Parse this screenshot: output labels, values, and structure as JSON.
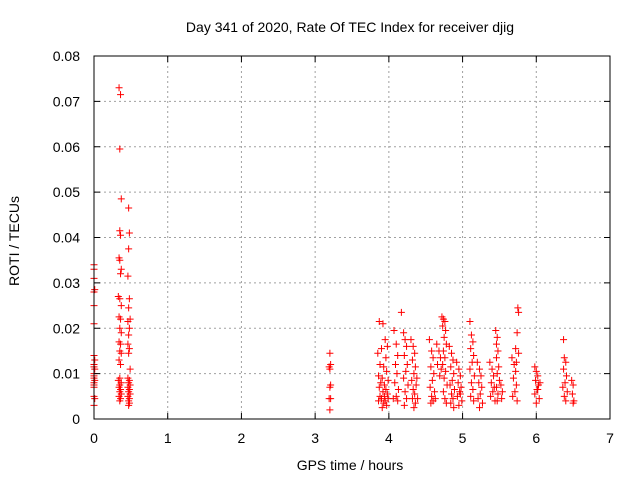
{
  "chart_data": {
    "type": "scatter",
    "title": "Day 341 of 2020, Rate Of TEC Index for receiver djig",
    "xlabel": "GPS time / hours",
    "ylabel": "ROTI / TECUs",
    "xlim": [
      0,
      7
    ],
    "ylim": [
      0,
      0.08
    ],
    "xticks": [
      "0",
      "1",
      "2",
      "3",
      "4",
      "5",
      "6",
      "7"
    ],
    "yticks": [
      "0",
      "0.01",
      "0.02",
      "0.03",
      "0.04",
      "0.05",
      "0.06",
      "0.07",
      "0.08"
    ],
    "grid": true,
    "marker": "+",
    "color": "#ff0000",
    "series": [
      {
        "name": "ROTI",
        "points": [
          [
            0.0,
            0.034
          ],
          [
            0.0,
            0.033
          ],
          [
            0.0,
            0.031
          ],
          [
            0.0,
            0.028
          ],
          [
            0.01,
            0.0285
          ],
          [
            0.0,
            0.025
          ],
          [
            0.0,
            0.021
          ],
          [
            0.0,
            0.014
          ],
          [
            0.01,
            0.013
          ],
          [
            0.0,
            0.012
          ],
          [
            0.0,
            0.0115
          ],
          [
            0.01,
            0.011
          ],
          [
            0.0,
            0.01
          ],
          [
            0.0,
            0.0095
          ],
          [
            0.0,
            0.009
          ],
          [
            0.01,
            0.0085
          ],
          [
            0.0,
            0.008
          ],
          [
            0.0,
            0.0075
          ],
          [
            0.0,
            0.007
          ],
          [
            0.0,
            0.005
          ],
          [
            0.01,
            0.0045
          ],
          [
            0.0,
            0.003
          ],
          [
            0.34,
            0.073
          ],
          [
            0.36,
            0.0715
          ],
          [
            0.35,
            0.0595
          ],
          [
            0.37,
            0.0485
          ],
          [
            0.35,
            0.0415
          ],
          [
            0.36,
            0.0405
          ],
          [
            0.34,
            0.0355
          ],
          [
            0.35,
            0.035
          ],
          [
            0.37,
            0.033
          ],
          [
            0.36,
            0.032
          ],
          [
            0.33,
            0.027
          ],
          [
            0.35,
            0.0265
          ],
          [
            0.37,
            0.025
          ],
          [
            0.34,
            0.0225
          ],
          [
            0.36,
            0.022
          ],
          [
            0.35,
            0.02
          ],
          [
            0.37,
            0.019
          ],
          [
            0.34,
            0.017
          ],
          [
            0.36,
            0.0165
          ],
          [
            0.35,
            0.015
          ],
          [
            0.37,
            0.0145
          ],
          [
            0.34,
            0.013
          ],
          [
            0.36,
            0.012
          ],
          [
            0.35,
            0.009
          ],
          [
            0.33,
            0.0085
          ],
          [
            0.37,
            0.008
          ],
          [
            0.35,
            0.0075
          ],
          [
            0.34,
            0.007
          ],
          [
            0.36,
            0.0065
          ],
          [
            0.35,
            0.006
          ],
          [
            0.37,
            0.0055
          ],
          [
            0.34,
            0.005
          ],
          [
            0.36,
            0.0045
          ],
          [
            0.35,
            0.004
          ],
          [
            0.47,
            0.0465
          ],
          [
            0.48,
            0.041
          ],
          [
            0.47,
            0.0375
          ],
          [
            0.46,
            0.0315
          ],
          [
            0.48,
            0.0265
          ],
          [
            0.47,
            0.0245
          ],
          [
            0.49,
            0.022
          ],
          [
            0.46,
            0.0215
          ],
          [
            0.48,
            0.02
          ],
          [
            0.47,
            0.0185
          ],
          [
            0.46,
            0.0165
          ],
          [
            0.48,
            0.0155
          ],
          [
            0.47,
            0.0145
          ],
          [
            0.49,
            0.011
          ],
          [
            0.46,
            0.009
          ],
          [
            0.48,
            0.0085
          ],
          [
            0.47,
            0.008
          ],
          [
            0.49,
            0.0075
          ],
          [
            0.46,
            0.007
          ],
          [
            0.48,
            0.0065
          ],
          [
            0.47,
            0.006
          ],
          [
            0.49,
            0.0055
          ],
          [
            0.46,
            0.005
          ],
          [
            0.48,
            0.0045
          ],
          [
            0.47,
            0.004
          ],
          [
            0.48,
            0.0035
          ],
          [
            0.47,
            0.003
          ],
          [
            3.2,
            0.0145
          ],
          [
            3.21,
            0.012
          ],
          [
            3.19,
            0.0115
          ],
          [
            3.2,
            0.011
          ],
          [
            3.21,
            0.0075
          ],
          [
            3.2,
            0.007
          ],
          [
            3.19,
            0.0045
          ],
          [
            3.21,
            0.0045
          ],
          [
            3.2,
            0.002
          ],
          [
            3.87,
            0.0215
          ],
          [
            3.92,
            0.021
          ],
          [
            3.95,
            0.0175
          ],
          [
            3.98,
            0.016
          ],
          [
            3.9,
            0.0155
          ],
          [
            3.85,
            0.0145
          ],
          [
            3.96,
            0.0135
          ],
          [
            3.88,
            0.012
          ],
          [
            3.93,
            0.0115
          ],
          [
            3.97,
            0.0105
          ],
          [
            3.86,
            0.0095
          ],
          [
            3.91,
            0.009
          ],
          [
            3.99,
            0.0085
          ],
          [
            3.89,
            0.008
          ],
          [
            3.94,
            0.0075
          ],
          [
            3.87,
            0.007
          ],
          [
            3.96,
            0.0065
          ],
          [
            3.92,
            0.006
          ],
          [
            3.98,
            0.0055
          ],
          [
            3.88,
            0.005
          ],
          [
            3.9,
            0.0045
          ],
          [
            3.95,
            0.004
          ],
          [
            3.93,
            0.0035
          ],
          [
            3.97,
            0.003
          ],
          [
            3.91,
            0.0025
          ],
          [
            3.99,
            0.0045
          ],
          [
            3.86,
            0.004
          ],
          [
            3.94,
            0.005
          ],
          [
            4.07,
            0.0195
          ],
          [
            4.1,
            0.0165
          ],
          [
            4.12,
            0.014
          ],
          [
            4.09,
            0.012
          ],
          [
            4.11,
            0.01
          ],
          [
            4.08,
            0.008
          ],
          [
            4.13,
            0.0065
          ],
          [
            4.1,
            0.005
          ],
          [
            4.06,
            0.0045
          ],
          [
            4.12,
            0.004
          ],
          [
            4.17,
            0.0235
          ],
          [
            4.2,
            0.019
          ],
          [
            4.22,
            0.0175
          ],
          [
            4.24,
            0.016
          ],
          [
            4.21,
            0.014
          ],
          [
            4.25,
            0.012
          ],
          [
            4.23,
            0.0105
          ],
          [
            4.2,
            0.009
          ],
          [
            4.26,
            0.0075
          ],
          [
            4.22,
            0.006
          ],
          [
            4.24,
            0.0045
          ],
          [
            4.21,
            0.003
          ],
          [
            4.3,
            0.0175
          ],
          [
            4.33,
            0.016
          ],
          [
            4.35,
            0.0145
          ],
          [
            4.32,
            0.013
          ],
          [
            4.36,
            0.0115
          ],
          [
            4.34,
            0.01
          ],
          [
            4.31,
            0.0085
          ],
          [
            4.37,
            0.0075
          ],
          [
            4.33,
            0.0065
          ],
          [
            4.35,
            0.0055
          ],
          [
            4.32,
            0.0045
          ],
          [
            4.36,
            0.0035
          ],
          [
            4.34,
            0.0025
          ],
          [
            4.38,
            0.009
          ],
          [
            4.39,
            0.0045
          ],
          [
            4.55,
            0.0175
          ],
          [
            4.58,
            0.015
          ],
          [
            4.6,
            0.0135
          ],
          [
            4.57,
            0.0115
          ],
          [
            4.61,
            0.01
          ],
          [
            4.59,
            0.0085
          ],
          [
            4.56,
            0.007
          ],
          [
            4.62,
            0.006
          ],
          [
            4.58,
            0.005
          ],
          [
            4.6,
            0.004
          ],
          [
            4.57,
            0.0035
          ],
          [
            4.63,
            0.0045
          ],
          [
            4.65,
            0.0165
          ],
          [
            4.68,
            0.015
          ],
          [
            4.7,
            0.0135
          ],
          [
            4.66,
            0.012
          ],
          [
            4.71,
            0.011
          ],
          [
            4.69,
            0.0095
          ],
          [
            4.72,
            0.0225
          ],
          [
            4.74,
            0.022
          ],
          [
            4.76,
            0.0215
          ],
          [
            4.73,
            0.0205
          ],
          [
            4.77,
            0.0195
          ],
          [
            4.75,
            0.018
          ],
          [
            4.78,
            0.0165
          ],
          [
            4.74,
            0.015
          ],
          [
            4.76,
            0.0135
          ],
          [
            4.73,
            0.012
          ],
          [
            4.77,
            0.0105
          ],
          [
            4.75,
            0.009
          ],
          [
            4.79,
            0.0075
          ],
          [
            4.74,
            0.006
          ],
          [
            4.76,
            0.0045
          ],
          [
            4.78,
            0.0035
          ],
          [
            4.82,
            0.016
          ],
          [
            4.85,
            0.0145
          ],
          [
            4.87,
            0.013
          ],
          [
            4.84,
            0.0115
          ],
          [
            4.88,
            0.01
          ],
          [
            4.86,
            0.0085
          ],
          [
            4.83,
            0.0075
          ],
          [
            4.89,
            0.0065
          ],
          [
            4.85,
            0.0055
          ],
          [
            4.87,
            0.0045
          ],
          [
            4.84,
            0.0035
          ],
          [
            4.88,
            0.0025
          ],
          [
            4.92,
            0.0125
          ],
          [
            4.95,
            0.011
          ],
          [
            4.97,
            0.0095
          ],
          [
            4.94,
            0.008
          ],
          [
            4.98,
            0.007
          ],
          [
            4.96,
            0.006
          ],
          [
            4.93,
            0.005
          ],
          [
            4.99,
            0.004
          ],
          [
            4.95,
            0.003
          ],
          [
            4.97,
            0.0055
          ],
          [
            5.1,
            0.0215
          ],
          [
            5.12,
            0.0185
          ],
          [
            5.14,
            0.017
          ],
          [
            5.11,
            0.0155
          ],
          [
            5.15,
            0.014
          ],
          [
            5.13,
            0.0125
          ],
          [
            5.1,
            0.011
          ],
          [
            5.16,
            0.0095
          ],
          [
            5.12,
            0.008
          ],
          [
            5.14,
            0.0065
          ],
          [
            5.11,
            0.005
          ],
          [
            5.15,
            0.004
          ],
          [
            5.2,
            0.0125
          ],
          [
            5.23,
            0.011
          ],
          [
            5.25,
            0.0095
          ],
          [
            5.22,
            0.008
          ],
          [
            5.26,
            0.007
          ],
          [
            5.24,
            0.0055
          ],
          [
            5.21,
            0.0045
          ],
          [
            5.27,
            0.0035
          ],
          [
            5.23,
            0.0025
          ],
          [
            5.37,
            0.0125
          ],
          [
            5.4,
            0.011
          ],
          [
            5.42,
            0.0095
          ],
          [
            5.39,
            0.008
          ],
          [
            5.43,
            0.007
          ],
          [
            5.41,
            0.006
          ],
          [
            5.38,
            0.005
          ],
          [
            5.44,
            0.004
          ],
          [
            5.45,
            0.0195
          ],
          [
            5.47,
            0.018
          ],
          [
            5.46,
            0.0165
          ],
          [
            5.48,
            0.015
          ],
          [
            5.46,
            0.0135
          ],
          [
            5.49,
            0.0115
          ],
          [
            5.47,
            0.01
          ],
          [
            5.5,
            0.0085
          ],
          [
            5.46,
            0.007
          ],
          [
            5.48,
            0.0055
          ],
          [
            5.47,
            0.004
          ],
          [
            5.52,
            0.0075
          ],
          [
            5.54,
            0.006
          ],
          [
            5.53,
            0.0045
          ],
          [
            5.67,
            0.0135
          ],
          [
            5.7,
            0.012
          ],
          [
            5.72,
            0.0105
          ],
          [
            5.69,
            0.009
          ],
          [
            5.73,
            0.0075
          ],
          [
            5.71,
            0.006
          ],
          [
            5.68,
            0.005
          ],
          [
            5.74,
            0.004
          ],
          [
            5.75,
            0.0245
          ],
          [
            5.76,
            0.0235
          ],
          [
            5.74,
            0.019
          ],
          [
            5.72,
            0.0155
          ],
          [
            5.76,
            0.0145
          ],
          [
            5.73,
            0.0125
          ],
          [
            5.98,
            0.0115
          ],
          [
            6.0,
            0.0105
          ],
          [
            6.02,
            0.0095
          ],
          [
            5.99,
            0.0085
          ],
          [
            6.03,
            0.0075
          ],
          [
            6.01,
            0.0065
          ],
          [
            5.98,
            0.0055
          ],
          [
            6.04,
            0.0045
          ],
          [
            6.0,
            0.0035
          ],
          [
            6.02,
            0.0065
          ],
          [
            6.05,
            0.008
          ],
          [
            6.37,
            0.0175
          ],
          [
            6.38,
            0.0135
          ],
          [
            6.4,
            0.0125
          ],
          [
            6.37,
            0.011
          ],
          [
            6.41,
            0.0095
          ],
          [
            6.39,
            0.008
          ],
          [
            6.36,
            0.007
          ],
          [
            6.42,
            0.006
          ],
          [
            6.38,
            0.005
          ],
          [
            6.4,
            0.004
          ],
          [
            6.48,
            0.0085
          ],
          [
            6.5,
            0.0075
          ],
          [
            6.49,
            0.0055
          ],
          [
            6.51,
            0.004
          ],
          [
            6.5,
            0.0035
          ]
        ]
      }
    ]
  }
}
